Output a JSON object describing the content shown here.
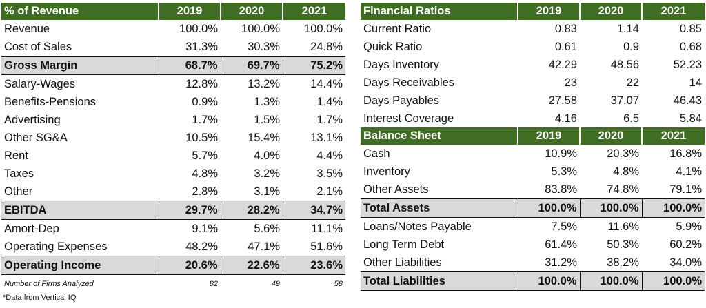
{
  "revenue_table": {
    "header": [
      "% of Revenue",
      "2019",
      "2020",
      "2021"
    ],
    "rows": [
      {
        "label": "Revenue",
        "values": [
          "100.0%",
          "100.0%",
          "100.0%"
        ],
        "bold": false
      },
      {
        "label": "Cost of Sales",
        "values": [
          "31.3%",
          "30.3%",
          "24.8%"
        ],
        "bold": false
      },
      {
        "label": "Gross Margin",
        "values": [
          "68.7%",
          "69.7%",
          "75.2%"
        ],
        "bold": true
      },
      {
        "label": "Salary-Wages",
        "values": [
          "12.8%",
          "13.2%",
          "14.4%"
        ],
        "bold": false
      },
      {
        "label": "Benefits-Pensions",
        "values": [
          "0.9%",
          "1.3%",
          "1.4%"
        ],
        "bold": false
      },
      {
        "label": "Advertising",
        "values": [
          "1.7%",
          "1.5%",
          "1.7%"
        ],
        "bold": false
      },
      {
        "label": "Other SG&A",
        "values": [
          "10.5%",
          "15.4%",
          "13.1%"
        ],
        "bold": false
      },
      {
        "label": "Rent",
        "values": [
          "5.7%",
          "4.0%",
          "4.4%"
        ],
        "bold": false
      },
      {
        "label": "Taxes",
        "values": [
          "4.8%",
          "3.2%",
          "3.5%"
        ],
        "bold": false
      },
      {
        "label": "Other",
        "values": [
          "2.8%",
          "3.1%",
          "2.1%"
        ],
        "bold": false
      },
      {
        "label": "EBITDA",
        "values": [
          "29.7%",
          "28.2%",
          "34.7%"
        ],
        "bold": true
      },
      {
        "label": "Amort-Dep",
        "values": [
          "9.1%",
          "5.6%",
          "11.1%"
        ],
        "bold": false
      },
      {
        "label": "Operating Expenses",
        "values": [
          "48.2%",
          "47.1%",
          "51.6%"
        ],
        "bold": false
      },
      {
        "label": "Operating Income",
        "values": [
          "20.6%",
          "22.6%",
          "23.6%"
        ],
        "bold": true
      }
    ],
    "firms": {
      "label": "Number of Firms Analyzed",
      "values": [
        "82",
        "49",
        "58"
      ]
    }
  },
  "ratios_table": {
    "header": [
      "Financial Ratios",
      "2019",
      "2020",
      "2021"
    ],
    "rows": [
      {
        "label": "Current Ratio",
        "values": [
          "0.83",
          "1.14",
          "0.85"
        ]
      },
      {
        "label": "Quick Ratio",
        "values": [
          "0.61",
          "0.9",
          "0.68"
        ]
      },
      {
        "label": "Days Inventory",
        "values": [
          "42.29",
          "48.56",
          "52.23"
        ]
      },
      {
        "label": "Days Receivables",
        "values": [
          "23",
          "22",
          "14"
        ]
      },
      {
        "label": "Days Payables",
        "values": [
          "27.58",
          "37.07",
          "46.43"
        ]
      },
      {
        "label": "Interest Coverage",
        "values": [
          "4.16",
          "6.5",
          "5.84"
        ]
      }
    ]
  },
  "balance_table": {
    "header": [
      "Balance Sheet",
      "2019",
      "2020",
      "2021"
    ],
    "rows": [
      {
        "label": "Cash",
        "values": [
          "10.9%",
          "20.3%",
          "16.8%"
        ],
        "bold": false
      },
      {
        "label": "Inventory",
        "values": [
          "5.3%",
          "4.8%",
          "4.1%"
        ],
        "bold": false
      },
      {
        "label": "Other Assets",
        "values": [
          "83.8%",
          "74.8%",
          "79.1%"
        ],
        "bold": false
      },
      {
        "label": "Total Assets",
        "values": [
          "100.0%",
          "100.0%",
          "100.0%"
        ],
        "bold": true
      },
      {
        "label": "Loans/Notes Payable",
        "values": [
          "7.5%",
          "11.6%",
          "5.9%"
        ],
        "bold": false
      },
      {
        "label": "Long Term Debt",
        "values": [
          "61.4%",
          "50.3%",
          "60.2%"
        ],
        "bold": false
      },
      {
        "label": "Other Liabilities",
        "values": [
          "31.2%",
          "38.2%",
          "34.0%"
        ],
        "bold": false
      },
      {
        "label": "Total Liabilities",
        "values": [
          "100.0%",
          "100.0%",
          "100.0%"
        ],
        "bold": true
      }
    ]
  },
  "footnote": "*Data from Vertical IQ"
}
